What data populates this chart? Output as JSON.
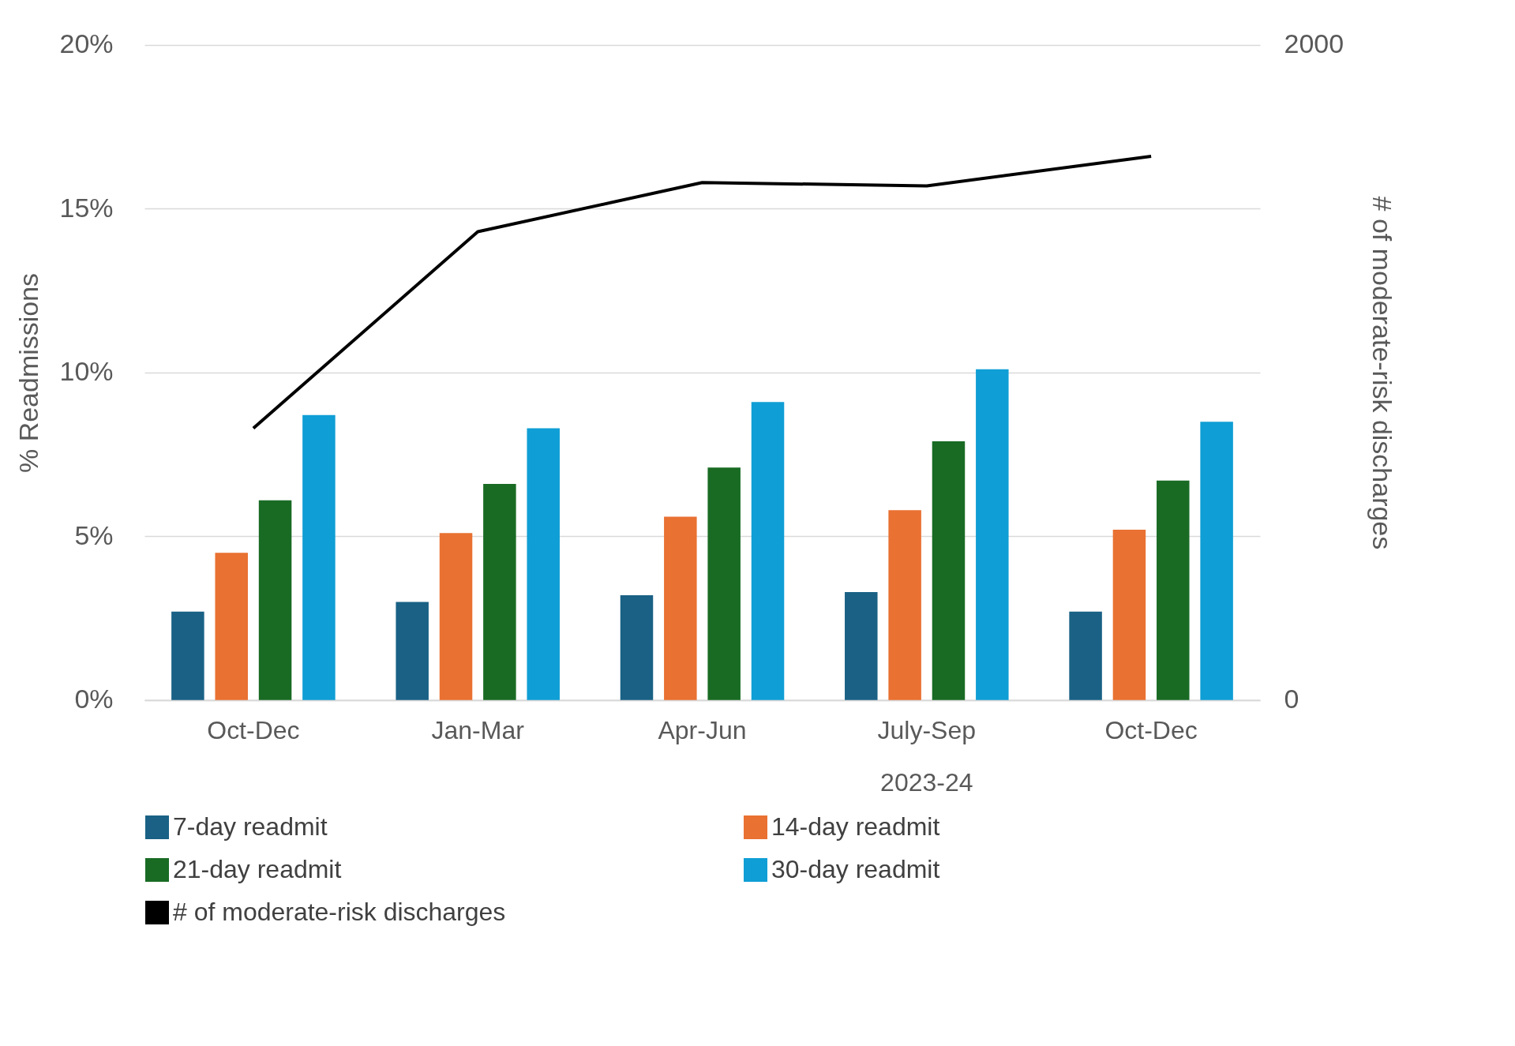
{
  "chart_data": {
    "type": "bar",
    "categories": [
      "Oct-Dec",
      "Jan-Mar",
      "Apr-Jun",
      "July-Sep",
      "Oct-Dec"
    ],
    "ylabel": "% Readmissions",
    "y2label": "# of moderate-risk discharges",
    "ylim": [
      0,
      20
    ],
    "yticks": [
      {
        "value": 0,
        "label": "0%"
      },
      {
        "value": 5,
        "label": "5%"
      },
      {
        "value": 10,
        "label": "10%"
      },
      {
        "value": 15,
        "label": "15%"
      },
      {
        "value": 20,
        "label": "20%"
      }
    ],
    "y2lim": [
      0,
      2000
    ],
    "y2ticks": [
      0,
      2000
    ],
    "grid": "y",
    "legend": "bottom",
    "annotations": [
      "2023-24"
    ],
    "series": [
      {
        "name": "7-day readmit",
        "color": "#1a6185",
        "values": [
          2.7,
          3.0,
          3.2,
          3.3,
          2.7
        ]
      },
      {
        "name": "14-day readmit",
        "color": "#e97132",
        "values": [
          4.5,
          5.1,
          5.6,
          5.8,
          5.2
        ]
      },
      {
        "name": "21-day readmit",
        "color": "#196b24",
        "values": [
          6.1,
          6.6,
          7.1,
          7.9,
          6.7
        ]
      },
      {
        "name": "30-day readmit",
        "color": "#0f9ed5",
        "values": [
          8.7,
          8.3,
          9.1,
          10.1,
          8.5
        ]
      },
      {
        "name": "# of moderate-risk discharges",
        "color": "#000000",
        "type": "line",
        "axis": "y2",
        "values": [
          830,
          1430,
          1580,
          1570,
          1660
        ]
      }
    ]
  }
}
